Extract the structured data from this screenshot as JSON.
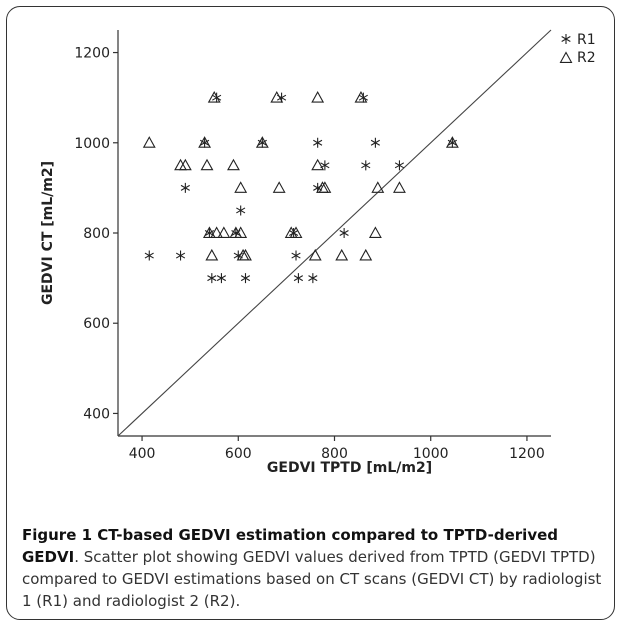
{
  "chart_data": {
    "type": "scatter",
    "xlabel": "GEDVI TPTD [mL/m2]",
    "ylabel": "GEDVI CT [mL/m2]",
    "xlim": [
      350,
      1250
    ],
    "ylim": [
      350,
      1250
    ],
    "xticks": [
      "400",
      "600",
      "800",
      "1000",
      "1200"
    ],
    "yticks": [
      "400",
      "600",
      "800",
      "1000",
      "1200"
    ],
    "reference_line": "identity (y = x)",
    "legend_position": "top-right",
    "series": [
      {
        "name": "R1",
        "marker": "star",
        "points": [
          [
            415,
            750
          ],
          [
            480,
            750
          ],
          [
            490,
            900
          ],
          [
            530,
            1000
          ],
          [
            540,
            800
          ],
          [
            545,
            700
          ],
          [
            555,
            1100
          ],
          [
            565,
            700
          ],
          [
            595,
            800
          ],
          [
            600,
            750
          ],
          [
            605,
            850
          ],
          [
            615,
            700
          ],
          [
            650,
            1000
          ],
          [
            690,
            1100
          ],
          [
            715,
            800
          ],
          [
            720,
            750
          ],
          [
            725,
            700
          ],
          [
            755,
            700
          ],
          [
            765,
            1000
          ],
          [
            765,
            900
          ],
          [
            780,
            950
          ],
          [
            820,
            800
          ],
          [
            860,
            1100
          ],
          [
            865,
            950
          ],
          [
            885,
            1000
          ],
          [
            935,
            950
          ],
          [
            1045,
            1000
          ]
        ]
      },
      {
        "name": "R2",
        "marker": "triangle",
        "points": [
          [
            415,
            1000
          ],
          [
            480,
            950
          ],
          [
            490,
            950
          ],
          [
            530,
            1000
          ],
          [
            535,
            950
          ],
          [
            540,
            800
          ],
          [
            545,
            750
          ],
          [
            550,
            1100
          ],
          [
            555,
            800
          ],
          [
            570,
            800
          ],
          [
            590,
            950
          ],
          [
            595,
            800
          ],
          [
            605,
            900
          ],
          [
            605,
            800
          ],
          [
            610,
            750
          ],
          [
            615,
            750
          ],
          [
            650,
            1000
          ],
          [
            680,
            1100
          ],
          [
            685,
            900
          ],
          [
            710,
            800
          ],
          [
            720,
            800
          ],
          [
            760,
            750
          ],
          [
            765,
            1100
          ],
          [
            765,
            950
          ],
          [
            775,
            900
          ],
          [
            780,
            900
          ],
          [
            815,
            750
          ],
          [
            855,
            1100
          ],
          [
            865,
            750
          ],
          [
            885,
            800
          ],
          [
            890,
            900
          ],
          [
            935,
            900
          ],
          [
            1045,
            1000
          ]
        ]
      }
    ]
  },
  "caption": {
    "title": "Figure 1 CT-based GEDVI estimation compared to TPTD-derived GEDVI",
    "text": ". Scatter plot showing GEDVI values derived from TPTD (GEDVI TPTD) compared to GEDVI estimations based on CT scans (GEDVI CT) by radiologist 1 (R1) and radiologist 2 (R2)."
  }
}
